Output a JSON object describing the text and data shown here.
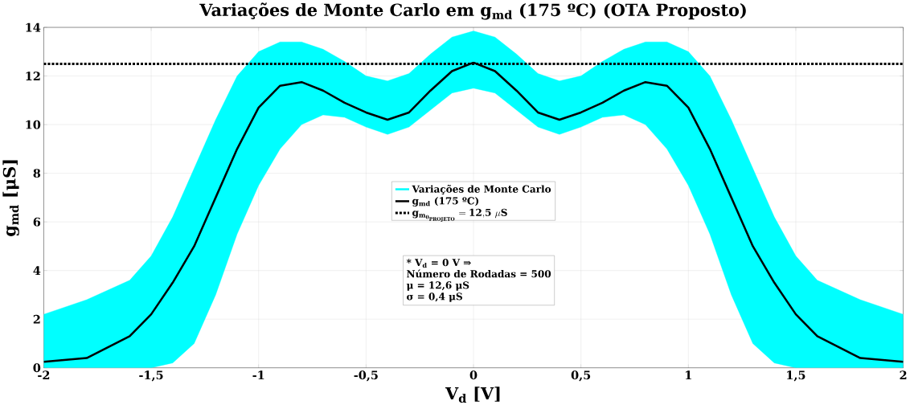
{
  "chart_data": {
    "type": "line",
    "title": "Variações de Monte Carlo em g$_{md}$ (175 ºC) (OTA Proposto)",
    "xlabel": "V$_{d}$ [V]",
    "ylabel": "g$_{md}$ [μS]",
    "x": [
      -2,
      -1.8,
      -1.6,
      -1.5,
      -1.4,
      -1.3,
      -1.2,
      -1.1,
      -1,
      -0.9,
      -0.8,
      -0.7,
      -0.6,
      -0.5,
      -0.4,
      -0.3,
      -0.2,
      -0.1,
      0,
      0.1,
      0.2,
      0.3,
      0.4,
      0.5,
      0.6,
      0.7,
      0.8,
      0.9,
      1,
      1.1,
      1.2,
      1.3,
      1.4,
      1.5,
      1.6,
      1.8,
      2
    ],
    "series": [
      {
        "name": "Variações de Monte Carlo",
        "color": "#00ffff",
        "values": [
          null,
          null,
          null,
          null,
          null,
          null,
          null,
          null,
          null,
          null,
          null,
          null,
          null,
          null,
          null,
          null,
          null,
          null,
          null,
          null,
          null,
          null,
          null,
          null,
          null,
          null,
          null,
          null,
          null,
          null,
          null,
          null,
          null,
          null,
          null,
          null,
          null
        ]
      },
      {
        "name": "g$_{md}$ (175 ºC)",
        "type": "line",
        "color": "#000000",
        "lower": [
          0,
          0,
          0,
          0,
          0.2,
          1,
          3,
          5.5,
          7.5,
          9,
          10,
          10.4,
          10.3,
          9.9,
          9.6,
          9.9,
          10.6,
          11.3,
          11.5,
          11.3,
          10.6,
          9.9,
          9.6,
          9.9,
          10.3,
          10.4,
          10,
          9,
          7.5,
          5.5,
          3,
          1,
          0.2,
          0,
          0,
          0,
          0
        ],
        "upper": [
          2.2,
          2.8,
          3.6,
          4.6,
          6.2,
          8.2,
          10.2,
          12,
          13,
          13.4,
          13.4,
          13.1,
          12.6,
          12,
          11.8,
          12.1,
          12.9,
          13.6,
          13.85,
          13.6,
          12.9,
          12.1,
          11.8,
          12,
          12.6,
          13.1,
          13.4,
          13.4,
          13,
          12,
          10.2,
          8.2,
          6.2,
          4.6,
          3.6,
          2.8,
          2.2
        ],
        "values": [
          0.25,
          0.4,
          1.3,
          2.2,
          3.5,
          5,
          7,
          9,
          10.7,
          11.6,
          11.75,
          11.4,
          10.9,
          10.5,
          10.2,
          10.5,
          11.4,
          12.2,
          12.55,
          12.2,
          11.4,
          10.5,
          10.2,
          10.5,
          10.9,
          11.4,
          11.75,
          11.6,
          10.7,
          9,
          7,
          5,
          3.5,
          2.2,
          1.3,
          0.4,
          0.25
        ]
      }
    ],
    "ref_lines": [
      {
        "axis": "y",
        "value": 12.5,
        "label": "\\mathbf{g_{m_{0_{PROJETO}}} = 12{,}5}\\ \\mu\\mathbf{S}",
        "color": "#000000",
        "line_style": "dotted"
      }
    ],
    "annotations": [
      "* V$_{d}$ = 0 V ⇒",
      "Número de Rodadas = 500",
      "μ = 12,6 μS",
      "σ = 0,4 μS"
    ],
    "xlim": [
      -2,
      2
    ],
    "ylim": [
      0,
      14
    ],
    "xticks": [
      -2,
      {
        "value": -1.5,
        "label": "-1,5"
      },
      -1,
      {
        "value": -0.5,
        "label": "-0,5"
      },
      0,
      {
        "value": 0.5,
        "label": "0,5"
      },
      1,
      {
        "value": 1.5,
        "label": "1,5"
      },
      2
    ],
    "yticks": [
      0,
      2,
      4,
      6,
      8,
      10,
      12,
      14
    ],
    "grid": true,
    "legend": "center",
    "marker": "none",
    "line_style": "solid"
  }
}
